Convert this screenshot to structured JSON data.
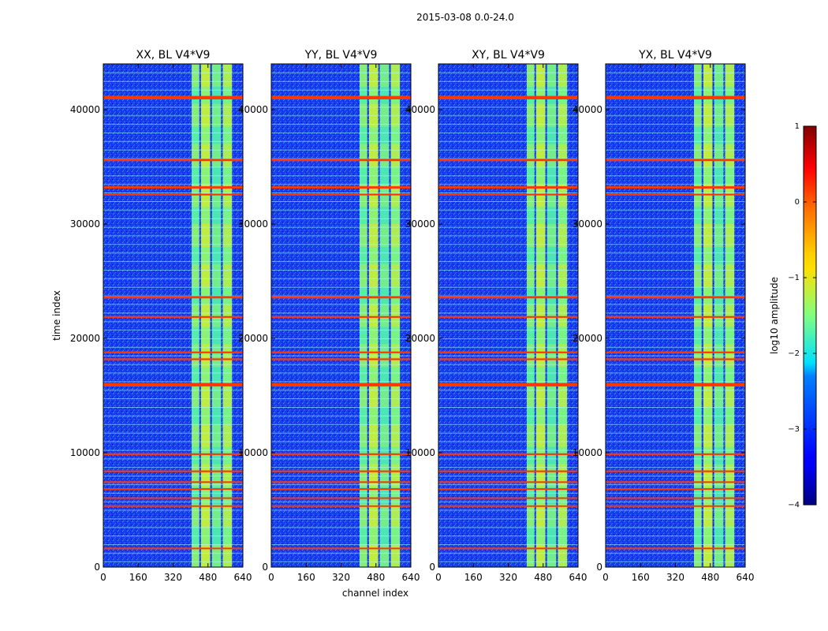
{
  "suptitle": "2015-03-08 0.0-24.0",
  "colors": {
    "band_line": "#ff7a00",
    "background_noise": "#1a3cf0",
    "rfi_block": "#a0ff50",
    "thin_line": "#a8ffff"
  },
  "chart_data": {
    "type": "heatmap",
    "colormap": "jet",
    "xlabel": "channel index",
    "ylabel": "time index",
    "xlim": [
      0,
      640
    ],
    "ylim": [
      0,
      44000
    ],
    "xticks": [
      0,
      160,
      320,
      480,
      640
    ],
    "yticks": [
      0,
      10000,
      20000,
      30000,
      40000
    ],
    "xtick_labels": [
      "0",
      "160",
      "320",
      "480",
      "640"
    ],
    "ytick_labels": [
      "0",
      "10000",
      "20000",
      "30000",
      "40000"
    ],
    "colorbar": {
      "label": "log10 amplitude",
      "range": [
        -4,
        1
      ],
      "ticks": [
        1,
        0,
        -1,
        -2,
        -3,
        -4
      ],
      "tick_labels": [
        "1",
        "0",
        "−1",
        "−2",
        "−3",
        "−4"
      ]
    },
    "panels": [
      {
        "title": "XX, BL V4*V9"
      },
      {
        "title": "YY, BL V4*V9"
      },
      {
        "title": "XY, BL V4*V9"
      },
      {
        "title": "YX, BL V4*V9"
      }
    ],
    "background_value": -3.2,
    "rfi_channel_blocks": [
      {
        "x0": 405,
        "x1": 440,
        "value": -1.4
      },
      {
        "x0": 448,
        "x1": 490,
        "value": -1.1
      },
      {
        "x0": 498,
        "x1": 540,
        "value": -1.5
      },
      {
        "x0": 548,
        "x1": 590,
        "value": -1.2
      }
    ],
    "rfi_gaps_channels": [
      440,
      448,
      490,
      498,
      540,
      548
    ],
    "flagged_time_bands": [
      {
        "t0": 40900,
        "t1": 41200,
        "value": 0.1
      },
      {
        "t0": 35500,
        "t1": 35700,
        "value": 0.1
      },
      {
        "t0": 33100,
        "t1": 33300,
        "value": 0.1
      },
      {
        "t0": 32500,
        "t1": 32650,
        "value": 0.1
      },
      {
        "t0": 23500,
        "t1": 23700,
        "value": 0.1
      },
      {
        "t0": 21800,
        "t1": 21950,
        "value": 0.1
      },
      {
        "t0": 18700,
        "t1": 18850,
        "value": 0.1
      },
      {
        "t0": 18100,
        "t1": 18250,
        "value": 0.1
      },
      {
        "t0": 15800,
        "t1": 16100,
        "value": 0.1
      },
      {
        "t0": 9800,
        "t1": 9950,
        "value": 0.1
      },
      {
        "t0": 8300,
        "t1": 8450,
        "value": 0.1
      },
      {
        "t0": 7400,
        "t1": 7500,
        "value": 0.1
      },
      {
        "t0": 6800,
        "t1": 6900,
        "value": 0.1
      },
      {
        "t0": 6000,
        "t1": 6100,
        "value": 0.1
      },
      {
        "t0": 5300,
        "t1": 5400,
        "value": 0.1
      },
      {
        "t0": 1600,
        "t1": 1700,
        "value": 0.1
      }
    ]
  }
}
